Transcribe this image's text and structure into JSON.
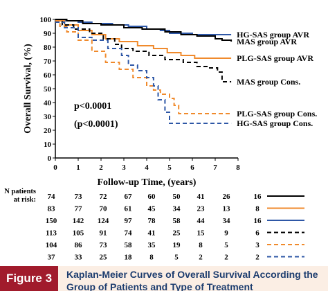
{
  "chart_data": {
    "type": "line",
    "title": "",
    "xlabel": "Follow-up Time, (years)",
    "ylabel": "Overall Survival, (%)",
    "xlim": [
      0,
      8
    ],
    "ylim": [
      0,
      100
    ],
    "x_ticks": [
      "0",
      "1",
      "2",
      "3",
      "4",
      "5",
      "6",
      "7",
      "8"
    ],
    "y_ticks": [
      "0",
      "10",
      "20",
      "30",
      "40",
      "50",
      "60",
      "70",
      "80",
      "90",
      "100"
    ],
    "annotations": [
      "p<0.0001",
      "(p<0.0001)"
    ],
    "colors": {
      "black": "#000000",
      "orange": "#f08a2c",
      "blue": "#2e57a6"
    },
    "series": [
      {
        "name": "HG-SAS group AVR",
        "color": "#2e57a6",
        "dashed": false,
        "points": [
          [
            0,
            100
          ],
          [
            0.3,
            99
          ],
          [
            1,
            98
          ],
          [
            1.6,
            97
          ],
          [
            2.5,
            96
          ],
          [
            3.2,
            95
          ],
          [
            4,
            93
          ],
          [
            4.6,
            92
          ],
          [
            5,
            90
          ],
          [
            5.6,
            90
          ],
          [
            6,
            89
          ],
          [
            7.7,
            89
          ]
        ]
      },
      {
        "name": "MAS group AVR",
        "color": "#000000",
        "dashed": false,
        "points": [
          [
            0,
            100
          ],
          [
            0.5,
            99
          ],
          [
            1.2,
            97
          ],
          [
            2,
            96
          ],
          [
            3,
            94
          ],
          [
            3.8,
            93
          ],
          [
            4.8,
            91
          ],
          [
            5.5,
            89
          ],
          [
            6.2,
            88
          ],
          [
            7,
            86
          ],
          [
            7.3,
            85
          ],
          [
            7.7,
            84
          ]
        ]
      },
      {
        "name": "PLG-SAS group AVR",
        "color": "#f08a2c",
        "dashed": false,
        "points": [
          [
            0,
            99
          ],
          [
            0.4,
            96
          ],
          [
            1,
            92
          ],
          [
            1.6,
            89
          ],
          [
            2.2,
            86
          ],
          [
            2.8,
            84
          ],
          [
            3.6,
            81
          ],
          [
            4.3,
            79
          ],
          [
            4.9,
            76
          ],
          [
            5.5,
            74
          ],
          [
            6.1,
            72
          ],
          [
            6.8,
            72
          ],
          [
            7.7,
            72
          ]
        ]
      },
      {
        "name": "MAS group Cons.",
        "color": "#000000",
        "dashed": true,
        "points": [
          [
            0,
            99
          ],
          [
            0.3,
            96
          ],
          [
            0.8,
            93
          ],
          [
            1.5,
            90
          ],
          [
            2.1,
            86
          ],
          [
            2.6,
            82
          ],
          [
            2.9,
            79
          ],
          [
            3.4,
            77
          ],
          [
            4.1,
            74
          ],
          [
            4.8,
            71
          ],
          [
            5.6,
            69
          ],
          [
            6.2,
            66
          ],
          [
            6.7,
            65
          ],
          [
            7.1,
            62
          ],
          [
            7.3,
            55
          ],
          [
            7.7,
            55
          ]
        ]
      },
      {
        "name": "PLG-SAS group Cons.",
        "color": "#f08a2c",
        "dashed": true,
        "points": [
          [
            0,
            99
          ],
          [
            0.2,
            95
          ],
          [
            0.5,
            91
          ],
          [
            1.0,
            85
          ],
          [
            1.6,
            77
          ],
          [
            2.2,
            69
          ],
          [
            2.8,
            64
          ],
          [
            3.4,
            58
          ],
          [
            4.0,
            52
          ],
          [
            4.3,
            49
          ],
          [
            4.6,
            46
          ],
          [
            5.0,
            43
          ],
          [
            5.2,
            38
          ],
          [
            5.4,
            32
          ],
          [
            6,
            32
          ],
          [
            7.7,
            32
          ]
        ]
      },
      {
        "name": "HG-SAS group Cons.",
        "color": "#2e57a6",
        "dashed": true,
        "points": [
          [
            0,
            98
          ],
          [
            0.4,
            94
          ],
          [
            1.0,
            87
          ],
          [
            1.6,
            85
          ],
          [
            2.3,
            79
          ],
          [
            2.9,
            74
          ],
          [
            3.2,
            67
          ],
          [
            3.6,
            63
          ],
          [
            4.0,
            58
          ],
          [
            4.3,
            52
          ],
          [
            4.5,
            42
          ],
          [
            4.8,
            33
          ],
          [
            5.0,
            25
          ],
          [
            6,
            25
          ],
          [
            7.7,
            25
          ]
        ]
      }
    ],
    "risk_table": {
      "label_line1": "N patients",
      "label_line2": "at risk:",
      "rows": [
        {
          "values": [
            "74",
            "73",
            "72",
            "67",
            "60",
            "50",
            "41",
            "26",
            "16"
          ],
          "color": "#000000",
          "dashed": false
        },
        {
          "values": [
            "83",
            "77",
            "70",
            "61",
            "45",
            "34",
            "23",
            "13",
            "8"
          ],
          "color": "#f08a2c",
          "dashed": false
        },
        {
          "values": [
            "150",
            "142",
            "124",
            "97",
            "78",
            "58",
            "44",
            "34",
            "16"
          ],
          "color": "#2e57a6",
          "dashed": false
        },
        {
          "values": [
            "113",
            "105",
            "91",
            "74",
            "41",
            "25",
            "15",
            "9",
            "6"
          ],
          "color": "#000000",
          "dashed": true
        },
        {
          "values": [
            "104",
            "86",
            "73",
            "58",
            "35",
            "19",
            "8",
            "5",
            "3"
          ],
          "color": "#f08a2c",
          "dashed": true
        },
        {
          "values": [
            "37",
            "33",
            "25",
            "18",
            "8",
            "5",
            "2",
            "2",
            "2"
          ],
          "color": "#2e57a6",
          "dashed": true
        }
      ]
    }
  },
  "caption": {
    "figure_label": "Figure 3",
    "text": "Kaplan-Meier Curves of Overall Survival According the Group of Patients and Type of Treatment"
  }
}
